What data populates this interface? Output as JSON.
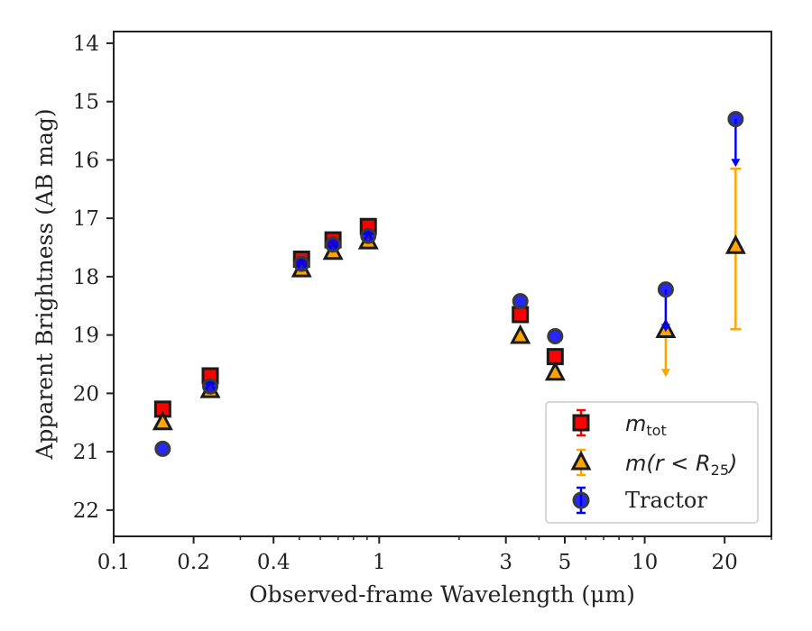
{
  "chart_data": {
    "type": "scatter",
    "xlabel": "Observed-frame Wavelength (μm)",
    "ylabel": "Apparent Brightness (AB mag)",
    "x_scale": "log",
    "xlim": [
      0.1,
      30
    ],
    "ylim": [
      22.45,
      13.8
    ],
    "y_inverted": true,
    "x_ticks": [
      0.1,
      0.2,
      0.4,
      1,
      3,
      5,
      10,
      20
    ],
    "x_tick_labels": [
      "0.1",
      "0.2",
      "0.4",
      "1",
      "3",
      "5",
      "10",
      "20"
    ],
    "y_ticks": [
      14,
      15,
      16,
      17,
      18,
      19,
      20,
      21,
      22
    ],
    "y_tick_labels": [
      "14",
      "15",
      "16",
      "17",
      "18",
      "19",
      "20",
      "21",
      "22"
    ],
    "grid": false,
    "legend_position": "bottom-right",
    "series": [
      {
        "key": "mtot",
        "legend_label": "m_tot",
        "marker": "square",
        "color": "#ff0000",
        "edge_color": "#1a1a1a",
        "error_color": "#ff0000",
        "points": [
          {
            "x": 0.153,
            "y": 20.27
          },
          {
            "x": 0.231,
            "y": 19.7
          },
          {
            "x": 0.51,
            "y": 17.7
          },
          {
            "x": 0.67,
            "y": 17.37
          },
          {
            "x": 0.91,
            "y": 17.14
          },
          {
            "x": 3.4,
            "y": 18.65
          },
          {
            "x": 4.6,
            "y": 19.37
          }
        ]
      },
      {
        "key": "mr25",
        "legend_label": "m(r < R25)",
        "marker": "triangle",
        "color": "#ffa500",
        "edge_color": "#1a1a1a",
        "error_color": "#ffa500",
        "points": [
          {
            "x": 0.153,
            "y": 20.5
          },
          {
            "x": 0.231,
            "y": 19.95
          },
          {
            "x": 0.51,
            "y": 17.88
          },
          {
            "x": 0.67,
            "y": 17.58
          },
          {
            "x": 0.91,
            "y": 17.4
          },
          {
            "x": 3.4,
            "y": 19.02
          },
          {
            "x": 4.6,
            "y": 19.65
          },
          {
            "x": 12.0,
            "y": 18.92,
            "upper_limit": true,
            "limit_to": 19.72
          },
          {
            "x": 22.0,
            "y": 17.48,
            "err_low": 16.15,
            "err_high": 18.9
          }
        ]
      },
      {
        "key": "tractor",
        "legend_label": "Tractor",
        "marker": "circle",
        "color": "#0000ff",
        "edge_color": "#3a3a3a",
        "error_color": "#0000ff",
        "points": [
          {
            "x": 0.153,
            "y": 20.95
          },
          {
            "x": 0.231,
            "y": 19.88
          },
          {
            "x": 0.51,
            "y": 17.78
          },
          {
            "x": 0.67,
            "y": 17.45
          },
          {
            "x": 0.91,
            "y": 17.3
          },
          {
            "x": 3.4,
            "y": 18.42
          },
          {
            "x": 4.6,
            "y": 19.02
          },
          {
            "x": 12.0,
            "y": 18.22,
            "upper_limit": true,
            "limit_to": 18.95
          },
          {
            "x": 22.0,
            "y": 15.3,
            "upper_limit": true,
            "limit_to": 16.12
          }
        ]
      }
    ]
  },
  "legend": {
    "mtot_main": "m",
    "mtot_sub": "tot",
    "mr25_main": "m(r < R",
    "mr25_sub": "25",
    "mr25_close": ")",
    "tractor": "Tractor"
  }
}
